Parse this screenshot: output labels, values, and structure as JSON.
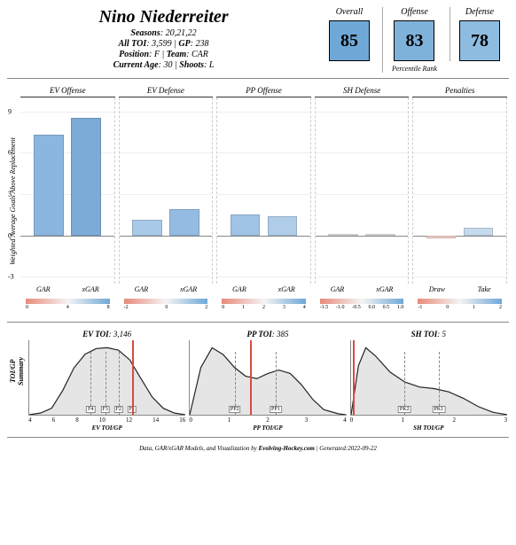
{
  "player": {
    "name": "Nino Niederreiter",
    "seasons_label": "Seasons",
    "seasons": "20,21,22",
    "toi_label": "All TOI",
    "toi": "3,599",
    "gp_label": "GP",
    "gp": "238",
    "position_label": "Position",
    "position": "F",
    "team_label": "Team",
    "team": "CAR",
    "age_label": "Current Age",
    "age": "30",
    "shoots_label": "Shoots",
    "shoots": "L"
  },
  "percentiles": {
    "overall": {
      "title": "Overall",
      "value": "85",
      "color": "#6fa8d6"
    },
    "offense": {
      "title": "Offense",
      "value": "83",
      "color": "#7fb2db"
    },
    "defense": {
      "title": "Defense",
      "value": "78",
      "color": "#8ebce0"
    },
    "sub": "Percentile Rank"
  },
  "barcharts": {
    "ylabel": "Weighted Average Goals Above Replacement",
    "ylim": [
      -3.5,
      10
    ],
    "yticks": [
      -3,
      0,
      3,
      6,
      9
    ],
    "panels": [
      {
        "title": "EV Offense",
        "xlabels": [
          "GAR",
          "xGAR"
        ],
        "bars": [
          {
            "value": 7.3,
            "color": "#8bb6df"
          },
          {
            "value": 8.5,
            "color": "#7dabd8"
          }
        ],
        "gradient_ticks": [
          "0",
          "4",
          "8"
        ]
      },
      {
        "title": "EV Defense",
        "xlabels": [
          "GAR",
          "xGAR"
        ],
        "bars": [
          {
            "value": 1.1,
            "color": "#a9c9e8"
          },
          {
            "value": 1.9,
            "color": "#94bce2"
          }
        ],
        "gradient_ticks": [
          "-2",
          "0",
          "2"
        ]
      },
      {
        "title": "PP Offense",
        "xlabels": [
          "GAR",
          "xGAR"
        ],
        "bars": [
          {
            "value": 1.5,
            "color": "#a1c3e5"
          },
          {
            "value": 1.4,
            "color": "#afcce9"
          }
        ],
        "gradient_ticks": [
          "0",
          "1",
          "2",
          "3",
          "4"
        ]
      },
      {
        "title": "SH Defense",
        "xlabels": [
          "GAR",
          "xGAR"
        ],
        "bars": [
          {
            "value": 0.02,
            "color": "#e9edf2"
          },
          {
            "value": 0.02,
            "color": "#e9edf2"
          }
        ],
        "gradient_ticks": [
          "-1.5",
          "-1.0",
          "-0.5",
          "0.0",
          "0.5",
          "1.0"
        ]
      },
      {
        "title": "Penalties",
        "xlabels": [
          "Draw",
          "Take"
        ],
        "bars": [
          {
            "value": -0.25,
            "color": "#f4cfc9"
          },
          {
            "value": 0.55,
            "color": "#c6daee"
          }
        ],
        "gradient_ticks": [
          "-1",
          "0",
          "1",
          "2"
        ]
      }
    ],
    "gradient_colors": {
      "low": "#e78a7a",
      "mid": "#f4f4f4",
      "high": "#6fa8d6"
    }
  },
  "toi": {
    "ylabel": "TOI/GP\nSummary",
    "panels": [
      {
        "title_label": "EV TOI",
        "title_value": "3,146",
        "xlabel": "EV TOI/GP",
        "xlim": [
          4,
          18
        ],
        "xticks": [
          "4",
          "6",
          "8",
          "10",
          "12",
          "14",
          "16"
        ],
        "marker": 13.2,
        "marker_color": "#d94a3f",
        "refs": [
          {
            "label": "F4",
            "x": 9.5
          },
          {
            "label": "F3",
            "x": 10.8
          },
          {
            "label": "F2",
            "x": 12.0
          },
          {
            "label": "F1",
            "x": 13.2
          }
        ],
        "density": [
          [
            4,
            0
          ],
          [
            5,
            2
          ],
          [
            6,
            8
          ],
          [
            7,
            30
          ],
          [
            8,
            58
          ],
          [
            9,
            75
          ],
          [
            10,
            82
          ],
          [
            11,
            83
          ],
          [
            12,
            80
          ],
          [
            13,
            68
          ],
          [
            14,
            45
          ],
          [
            15,
            22
          ],
          [
            16,
            8
          ],
          [
            17,
            2
          ],
          [
            18,
            0
          ]
        ]
      },
      {
        "title_label": "PP TOI",
        "title_value": "385",
        "xlabel": "PP TOI/GP",
        "xlim": [
          0,
          4.2
        ],
        "xticks": [
          "0",
          "1",
          "2",
          "3",
          "4"
        ],
        "marker": 1.6,
        "marker_color": "#d94a3f",
        "refs": [
          {
            "label": "PP2",
            "x": 1.2
          },
          {
            "label": "PP1",
            "x": 2.3
          }
        ],
        "density": [
          [
            0,
            0
          ],
          [
            0.3,
            55
          ],
          [
            0.6,
            78
          ],
          [
            0.9,
            70
          ],
          [
            1.2,
            55
          ],
          [
            1.5,
            45
          ],
          [
            1.8,
            42
          ],
          [
            2.1,
            48
          ],
          [
            2.4,
            52
          ],
          [
            2.7,
            48
          ],
          [
            3.0,
            35
          ],
          [
            3.3,
            18
          ],
          [
            3.6,
            6
          ],
          [
            4.0,
            1
          ],
          [
            4.2,
            0
          ]
        ]
      },
      {
        "title_label": "SH TOI",
        "title_value": "5",
        "xlabel": "SH TOI/GP",
        "xlim": [
          0,
          3.2
        ],
        "xticks": [
          "0",
          "1",
          "2",
          "3"
        ],
        "marker": 0.05,
        "marker_color": "#d94a3f",
        "refs": [
          {
            "label": "PK2",
            "x": 1.1
          },
          {
            "label": "PK1",
            "x": 1.8
          }
        ],
        "density": [
          [
            0,
            0
          ],
          [
            0.15,
            60
          ],
          [
            0.3,
            82
          ],
          [
            0.5,
            72
          ],
          [
            0.8,
            52
          ],
          [
            1.1,
            40
          ],
          [
            1.4,
            34
          ],
          [
            1.7,
            32
          ],
          [
            2.0,
            28
          ],
          [
            2.3,
            20
          ],
          [
            2.6,
            10
          ],
          [
            2.9,
            3
          ],
          [
            3.2,
            0
          ]
        ]
      }
    ]
  },
  "footer": {
    "text_prefix": "Data, GAR/xGAR Models, and Visualization by ",
    "site": "Evolving-Hockey.com",
    "generated_label": "Generated",
    "generated": "2022-09-22"
  }
}
